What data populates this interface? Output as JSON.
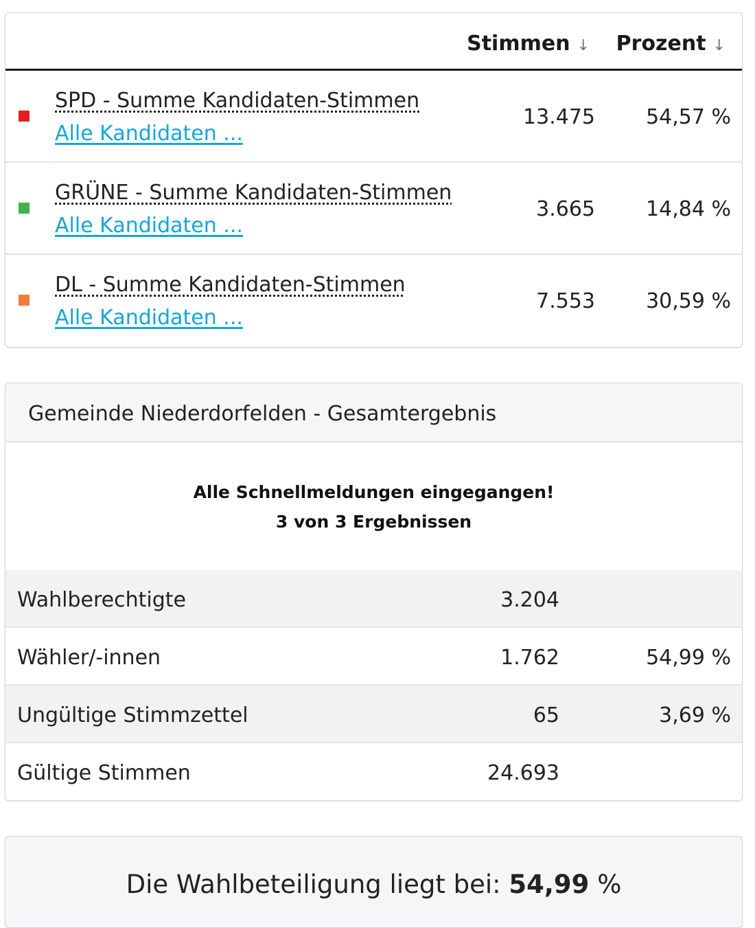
{
  "results": {
    "columns": {
      "votes": "Stimmen",
      "percent": "Prozent"
    },
    "rows": [
      {
        "title": "SPD - Summe Kandidaten-Stimmen",
        "link": "Alle Kandidaten ...",
        "votes": "13.475",
        "percent": "54,57 %",
        "color": "#e41e1e"
      },
      {
        "title": "GRÜNE - Summe Kandidaten-Stimmen",
        "link": "Alle Kandidaten ...",
        "votes": "3.665",
        "percent": "14,84 %",
        "color": "#43b04b"
      },
      {
        "title": "DL - Summe Kandidaten-Stimmen",
        "link": "Alle Kandidaten ...",
        "votes": "7.553",
        "percent": "30,59 %",
        "color": "#ef7c3a"
      }
    ]
  },
  "totals": {
    "title": "Gemeinde Niederdorfelden - Gesamtergebnis",
    "status_line1": "Alle Schnellmeldungen eingegangen!",
    "status_line2": "3 von 3 Ergebnissen",
    "rows": [
      {
        "label": "Wahlberechtigte",
        "value": "3.204",
        "percent": ""
      },
      {
        "label": "Wähler/-innen",
        "value": "1.762",
        "percent": "54,99 %"
      },
      {
        "label": "Ungültige Stimmzettel",
        "value": "65",
        "percent": "3,69 %"
      },
      {
        "label": "Gültige Stimmen",
        "value": "24.693",
        "percent": ""
      }
    ]
  },
  "turnout": {
    "prefix": "Die Wahlbeteiligung liegt bei: ",
    "value": "54,99",
    "suffix": " %"
  }
}
